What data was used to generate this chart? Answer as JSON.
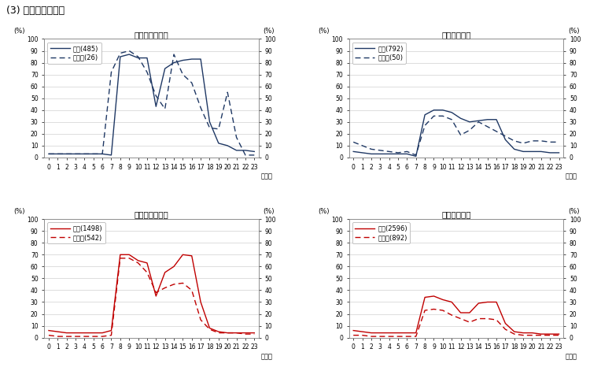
{
  "title": "(3) 保健医療従事者",
  "subplots": [
    {
      "title": "男性（月～金）",
      "legend1": "正規(485)",
      "legend2": "非正規(26)",
      "color": "#1f3864",
      "regular": [
        3,
        3,
        3,
        3,
        3,
        3,
        3,
        2,
        85,
        87,
        84,
        84,
        43,
        75,
        80,
        82,
        83,
        83,
        30,
        12,
        10,
        6,
        6,
        5
      ],
      "irregular": [
        3,
        3,
        3,
        3,
        3,
        3,
        3,
        72,
        88,
        90,
        85,
        72,
        52,
        41,
        87,
        70,
        63,
        42,
        25,
        24,
        55,
        17,
        2,
        2
      ]
    },
    {
      "title": "男性（土日）",
      "legend1": "正規(792)",
      "legend2": "非正規(50)",
      "color": "#1f3864",
      "regular": [
        5,
        4,
        3,
        3,
        3,
        3,
        3,
        1,
        36,
        40,
        40,
        38,
        33,
        30,
        31,
        32,
        32,
        15,
        7,
        5,
        5,
        5,
        4,
        4
      ],
      "irregular": [
        13,
        10,
        7,
        6,
        5,
        4,
        5,
        2,
        27,
        35,
        35,
        32,
        19,
        23,
        30,
        26,
        22,
        18,
        14,
        12,
        14,
        14,
        13,
        13
      ]
    },
    {
      "title": "女性（月～金）",
      "legend1": "正規(1498)",
      "legend2": "非正規(542)",
      "color": "#c00000",
      "regular": [
        6,
        5,
        4,
        4,
        4,
        4,
        4,
        6,
        70,
        70,
        65,
        63,
        35,
        55,
        60,
        70,
        69,
        30,
        8,
        5,
        4,
        4,
        4,
        4
      ],
      "irregular": [
        2,
        1,
        1,
        1,
        1,
        1,
        1,
        2,
        67,
        67,
        63,
        55,
        38,
        42,
        45,
        46,
        40,
        15,
        7,
        4,
        4,
        4,
        3,
        3
      ]
    },
    {
      "title": "女性（土日）",
      "legend1": "正規(2596)",
      "legend2": "非正規(892)",
      "color": "#c00000",
      "regular": [
        6,
        5,
        4,
        4,
        4,
        4,
        4,
        4,
        34,
        35,
        32,
        30,
        21,
        21,
        29,
        30,
        30,
        12,
        5,
        4,
        4,
        3,
        3,
        3
      ],
      "irregular": [
        2,
        2,
        1,
        1,
        1,
        1,
        1,
        1,
        23,
        24,
        23,
        19,
        16,
        13,
        16,
        16,
        15,
        7,
        3,
        2,
        2,
        2,
        2,
        2
      ]
    }
  ],
  "hours": [
    0,
    1,
    2,
    3,
    4,
    5,
    6,
    7,
    8,
    9,
    10,
    11,
    12,
    13,
    14,
    15,
    16,
    17,
    18,
    19,
    20,
    21,
    22,
    23
  ],
  "ylim": [
    0,
    100
  ],
  "yticks": [
    0,
    10,
    20,
    30,
    40,
    50,
    60,
    70,
    80,
    90,
    100
  ],
  "background": "#ffffff",
  "grid_color": "#d0d0d0"
}
